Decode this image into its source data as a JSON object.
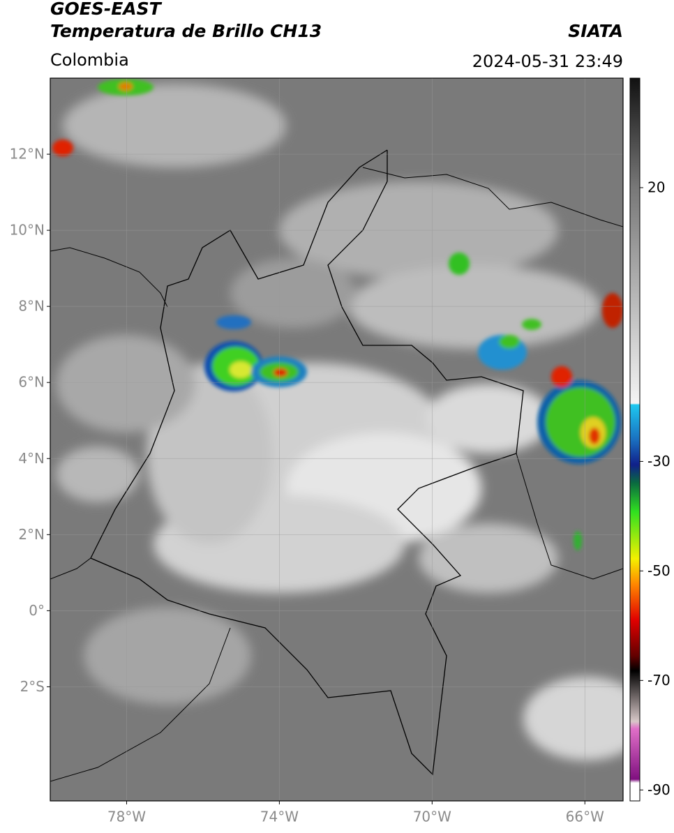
{
  "header": {
    "title": "GOES-EAST",
    "subtitle": "Temperatura de Brillo CH13",
    "source": "SIATA",
    "region": "Colombia",
    "datetime": "2024-05-31 23:49"
  },
  "map": {
    "xlim": [
      -80,
      -65
    ],
    "ylim": [
      -5,
      14
    ],
    "lat_ticks": [
      {
        "value": 12,
        "label": "12°N"
      },
      {
        "value": 10,
        "label": "10°N"
      },
      {
        "value": 8,
        "label": "8°N"
      },
      {
        "value": 6,
        "label": "6°N"
      },
      {
        "value": 4,
        "label": "4°N"
      },
      {
        "value": 2,
        "label": "2°N"
      },
      {
        "value": 0,
        "label": "0°"
      },
      {
        "value": -2,
        "label": "2°S"
      }
    ],
    "lon_ticks": [
      {
        "value": -78,
        "label": "78°W"
      },
      {
        "value": -74,
        "label": "74°W"
      },
      {
        "value": -70,
        "label": "70°W"
      },
      {
        "value": -66,
        "label": "66°W"
      }
    ]
  },
  "colorbar": {
    "range": [
      -92,
      40
    ],
    "ticks": [
      20,
      -30,
      -50,
      -70,
      -90
    ]
  }
}
